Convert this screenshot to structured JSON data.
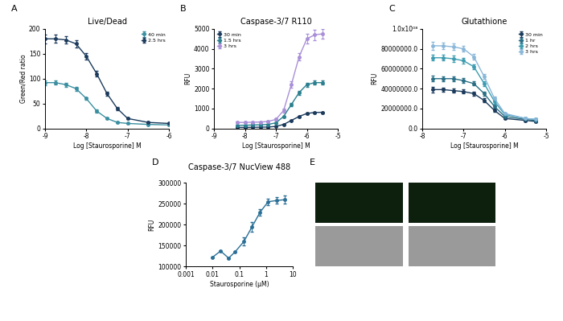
{
  "chart_data": [
    {
      "panel": "A",
      "type": "line",
      "title": "Live/Dead",
      "x_label": "Log [Staurosporine] M",
      "y_label": "Green/Red ratio",
      "xlim": [
        -9,
        -6
      ],
      "xticks": [
        -9,
        -8,
        -7,
        -6
      ],
      "ylim": [
        0,
        200
      ],
      "yticks": [
        0,
        50,
        100,
        150,
        200
      ],
      "legend": "upper right",
      "marker": "o",
      "x": [
        -9,
        -8.75,
        -8.5,
        -8.25,
        -8,
        -7.75,
        -7.5,
        -7.25,
        -7,
        -6.5,
        -6
      ],
      "series": [
        {
          "name": "40 min",
          "color": "#3a8fa0",
          "values": [
            92,
            92,
            88,
            80,
            60,
            35,
            20,
            12,
            10,
            8,
            7
          ],
          "errors": [
            5,
            4,
            4,
            4,
            3,
            3,
            2,
            2,
            1,
            1,
            1
          ]
        },
        {
          "name": "2.5 hrs",
          "color": "#1b3a5c",
          "values": [
            180,
            180,
            178,
            170,
            145,
            110,
            70,
            40,
            20,
            12,
            10
          ],
          "errors": [
            9,
            8,
            8,
            7,
            6,
            5,
            4,
            3,
            2,
            2,
            1
          ]
        }
      ]
    },
    {
      "panel": "B",
      "type": "line",
      "title": "Caspase-3/7 R110",
      "x_label": "Log [Staurosporine] M",
      "y_label": "RFU",
      "xlim": [
        -9,
        -5
      ],
      "xticks": [
        -9,
        -8,
        -7,
        -6,
        -5
      ],
      "ylim": [
        0,
        5000
      ],
      "yticks": [
        0,
        1000,
        2000,
        3000,
        4000,
        5000
      ],
      "legend": "upper left",
      "marker": "o",
      "x": [
        -8.25,
        -8,
        -7.75,
        -7.5,
        -7.25,
        -7,
        -6.75,
        -6.5,
        -6.25,
        -6,
        -5.75,
        -5.5
      ],
      "series": [
        {
          "name": "30 min",
          "color": "#1b3a5c",
          "values": [
            50,
            50,
            55,
            60,
            70,
            100,
            200,
            400,
            600,
            750,
            800,
            810
          ],
          "errors": [
            10,
            10,
            10,
            10,
            10,
            15,
            20,
            30,
            40,
            40,
            40,
            40
          ]
        },
        {
          "name": "1.5 hrs",
          "color": "#2a7f8f",
          "values": [
            150,
            160,
            170,
            180,
            200,
            280,
            600,
            1200,
            1800,
            2200,
            2300,
            2300
          ],
          "errors": [
            20,
            20,
            20,
            20,
            25,
            30,
            50,
            80,
            100,
            100,
            100,
            100
          ]
        },
        {
          "name": "3 hrs",
          "color": "#a98fd8",
          "values": [
            300,
            300,
            310,
            320,
            350,
            450,
            900,
            2200,
            3600,
            4500,
            4700,
            4750
          ],
          "errors": [
            30,
            30,
            30,
            30,
            40,
            50,
            100,
            150,
            200,
            250,
            250,
            250
          ]
        }
      ]
    },
    {
      "panel": "C",
      "type": "line",
      "title": "Glutathione",
      "x_label": "Log [Staurosporine] M",
      "y_label": "RFU",
      "xlim": [
        -8,
        -5
      ],
      "xticks": [
        -8,
        -7,
        -6,
        -5
      ],
      "ylim": [
        0,
        100000000
      ],
      "yticks": [
        {
          "value": 0,
          "label": "0.0"
        },
        {
          "value": 20000000,
          "label": "20000000.0"
        },
        {
          "value": 40000000,
          "label": "40000000.0"
        },
        {
          "value": 60000000,
          "label": "60000000.0"
        },
        {
          "value": 80000000,
          "label": "80000000.0"
        },
        {
          "value": 100000000,
          "label": "1.0x10⁰⁸"
        }
      ],
      "legend": "upper right",
      "marker": "o",
      "x": [
        -7.75,
        -7.5,
        -7.25,
        -7,
        -6.75,
        -6.5,
        -6.25,
        -6,
        -5.5,
        -5.25
      ],
      "series": [
        {
          "name": "30 min",
          "color": "#1b3a5c",
          "values": [
            39000000,
            39000000,
            38000000,
            37000000,
            35000000,
            28000000,
            18000000,
            10000000,
            8000000,
            7000000
          ],
          "errors": [
            3000000,
            2000000,
            2000000,
            2000000,
            2000000,
            2000000,
            1500000,
            1000000,
            800000,
            800000
          ]
        },
        {
          "name": "1 hr",
          "color": "#2a6f86",
          "values": [
            50000000,
            50000000,
            50000000,
            48000000,
            45000000,
            35000000,
            22000000,
            12000000,
            9000000,
            8000000
          ],
          "errors": [
            3000000,
            2500000,
            2500000,
            2500000,
            2000000,
            2000000,
            1500000,
            1000000,
            800000,
            800000
          ]
        },
        {
          "name": "2 hrs",
          "color": "#3d9cb0",
          "values": [
            71000000,
            71000000,
            70000000,
            68000000,
            62000000,
            45000000,
            27000000,
            14000000,
            10000000,
            9000000
          ],
          "errors": [
            3000000,
            3000000,
            3000000,
            3000000,
            2500000,
            2500000,
            2000000,
            1000000,
            800000,
            800000
          ]
        },
        {
          "name": "3 hrs",
          "color": "#8ab7d9",
          "values": [
            83000000,
            83000000,
            82000000,
            80000000,
            72000000,
            52000000,
            30000000,
            15000000,
            10000000,
            9000000
          ],
          "errors": [
            4000000,
            3000000,
            3000000,
            3000000,
            3000000,
            2500000,
            2000000,
            1000000,
            800000,
            800000
          ]
        }
      ]
    },
    {
      "panel": "D",
      "type": "line",
      "title": "Caspase-3/7 NucView 488",
      "x_label": "Staurosporine (μM)",
      "y_label": "RFU",
      "log": "x",
      "xlim": [
        0.001,
        10
      ],
      "xticks": [
        0.001,
        0.01,
        0.1,
        1,
        10
      ],
      "ylim": [
        100000,
        300000
      ],
      "yticks": [
        100000,
        150000,
        200000,
        250000,
        300000
      ],
      "marker": "o",
      "x": [
        0.01,
        0.02,
        0.04,
        0.07,
        0.15,
        0.3,
        0.6,
        1.2,
        2.5,
        5
      ],
      "series": [
        {
          "color": "#2a6f96",
          "values": [
            122000,
            137000,
            120000,
            135000,
            160000,
            195000,
            230000,
            255000,
            258000,
            260000
          ],
          "errors": [
            0,
            0,
            0,
            0,
            10000,
            12000,
            8000,
            8000,
            8000,
            10000
          ]
        }
      ]
    },
    {
      "panel": "E",
      "type": "image"
    }
  ]
}
